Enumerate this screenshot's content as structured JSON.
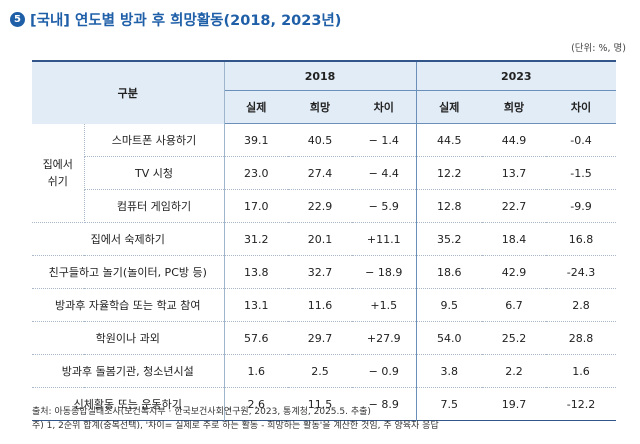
{
  "title": {
    "badge": "5",
    "text": "[국내] 연도별 방과 후 희망활동(2018, 2023년)"
  },
  "unit": "(단위: %, 명)",
  "table": {
    "corner": "구분",
    "years": [
      "2018",
      "2023"
    ],
    "subheaders": [
      "실제",
      "희망",
      "차이",
      "실제",
      "희망",
      "차이"
    ],
    "group_label": "집에서\n쉬기",
    "group_rows": [
      {
        "label": "스마트폰 사용하기",
        "values": [
          "39.1",
          "40.5",
          "− 1.4",
          "44.5",
          "44.9",
          "-0.4"
        ]
      },
      {
        "label": "TV 시청",
        "values": [
          "23.0",
          "27.4",
          "− 4.4",
          "12.2",
          "13.7",
          "-1.5"
        ]
      },
      {
        "label": "컴퓨터 게임하기",
        "values": [
          "17.0",
          "22.9",
          "− 5.9",
          "12.8",
          "22.7",
          "-9.9"
        ]
      }
    ],
    "rows": [
      {
        "label": "집에서 숙제하기",
        "values": [
          "31.2",
          "20.1",
          "+11.1",
          "35.2",
          "18.4",
          "16.8"
        ]
      },
      {
        "label": "친구들하고 놀기(놀이터, PC방 등)",
        "values": [
          "13.8",
          "32.7",
          "− 18.9",
          "18.6",
          "42.9",
          "-24.3"
        ]
      },
      {
        "label": "방과후 자율학습 또는 학교 참여",
        "values": [
          "13.1",
          "11.6",
          "+1.5",
          "9.5",
          "6.7",
          "2.8"
        ]
      },
      {
        "label": "학원이나 과외",
        "values": [
          "57.6",
          "29.7",
          "+27.9",
          "54.0",
          "25.2",
          "28.8"
        ]
      },
      {
        "label": "방과후 돌봄기관, 청소년시설",
        "values": [
          "1.6",
          "2.5",
          "− 0.9",
          "3.8",
          "2.2",
          "1.6"
        ]
      },
      {
        "label": "신체활동 또는 운동하기",
        "values": [
          "2.6",
          "11.5",
          "− 8.9",
          "7.5",
          "19.7",
          "-12.2"
        ]
      }
    ]
  },
  "notes": [
    "출처: 아동종합실태조사(보건복지부 · 한국보건사회연구원, 2023, 통계청, 2025.5. 추출)",
    "주) 1, 2순위 합계(중복선택), '차이= 실제로 주로 하는 활동 - 희망하는 활동'을 계산한 것임, 주 양육자 응답"
  ],
  "colors": {
    "title": "#1f5fa8",
    "header_bg": "#e2ecf6",
    "rule": "#33568a"
  }
}
